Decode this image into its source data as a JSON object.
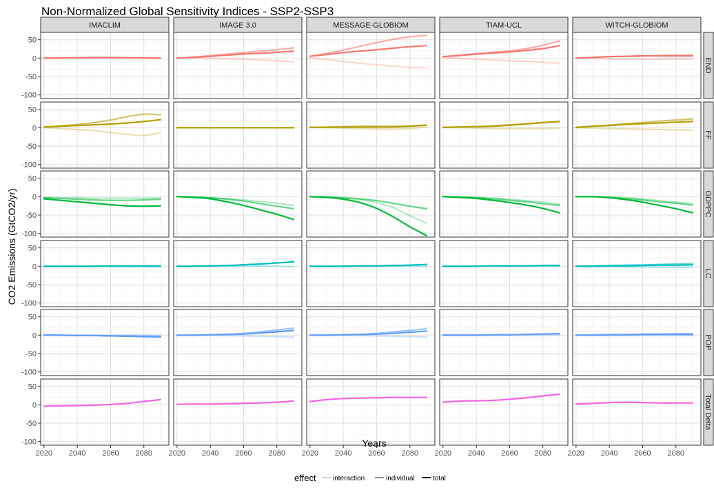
{
  "chart_data": {
    "type": "line",
    "title": "Non-Normalized Global Sensitivity Indices - SSP2-SSP3",
    "xlabel": "Years",
    "ylabel": "CO2 Emissions (GtCO2/yr)",
    "x": [
      2020,
      2030,
      2040,
      2050,
      2060,
      2070,
      2080,
      2090
    ],
    "xlim": [
      2018,
      2095
    ],
    "ylim": [
      -110,
      70
    ],
    "x_ticks": [
      2020,
      2040,
      2060,
      2080
    ],
    "y_ticks": [
      50,
      0,
      -50,
      -100
    ],
    "grid": true,
    "facet_cols": [
      "IMACLIM",
      "IMAGE 3.0",
      "MESSAGE-GLOBIOM",
      "TIAM-UCL",
      "WITCH-GLOBIOM"
    ],
    "facet_rows": [
      {
        "label": "END",
        "color": "#F8766D"
      },
      {
        "label": "FF",
        "color": "#B79F00"
      },
      {
        "label": "GDPPC",
        "color": "#00BA38"
      },
      {
        "label": "LC",
        "color": "#00BFC4"
      },
      {
        "label": "POP",
        "color": "#619CFF"
      },
      {
        "label": "Total Delta",
        "color": "#F564E3"
      }
    ],
    "panels": {
      "END": {
        "IMACLIM": {
          "interaction": [
            0,
            0,
            0,
            0,
            0,
            0,
            0,
            0
          ],
          "individual": [
            0,
            0.5,
            1,
            1.5,
            1.5,
            1,
            0.5,
            0
          ],
          "total": [
            0,
            0.5,
            1,
            1.5,
            1.5,
            1,
            0.5,
            0
          ]
        },
        "IMAGE 3.0": {
          "interaction": [
            0,
            0,
            -1,
            -2,
            -3,
            -5,
            -7,
            -10
          ],
          "individual": [
            0,
            3,
            7,
            11,
            15,
            19,
            23,
            28
          ],
          "total": [
            0,
            2,
            5,
            8,
            11,
            13,
            16,
            19
          ]
        },
        "MESSAGE-GLOBIOM": {
          "interaction": [
            0,
            -4,
            -9,
            -14,
            -18,
            -22,
            -25,
            -26
          ],
          "individual": [
            5,
            13,
            22,
            32,
            42,
            51,
            58,
            62
          ],
          "total": [
            5,
            10,
            15,
            19,
            23,
            27,
            31,
            34
          ]
        },
        "TIAM-UCL": {
          "interaction": [
            0,
            -1,
            -3,
            -5,
            -7,
            -9,
            -11,
            -14
          ],
          "individual": [
            4,
            8,
            12,
            16,
            20,
            26,
            35,
            47
          ],
          "total": [
            4,
            7,
            11,
            14,
            17,
            21,
            26,
            34
          ]
        },
        "WITCH-GLOBIOM": {
          "interaction": [
            0,
            -1,
            -2,
            -3,
            -3,
            -3,
            -2,
            -2
          ],
          "individual": [
            0,
            2,
            4,
            5,
            6,
            7,
            8,
            8
          ],
          "total": [
            0,
            2,
            4,
            5,
            6,
            6,
            6,
            6
          ]
        }
      },
      "FF": {
        "IMACLIM": {
          "interaction": [
            0,
            -2,
            -5,
            -8,
            -13,
            -18,
            -21,
            -13
          ],
          "individual": [
            2,
            5,
            9,
            14,
            21,
            30,
            37,
            35
          ],
          "total": [
            2,
            4,
            6,
            8,
            10,
            13,
            17,
            22
          ]
        },
        "IMAGE 3.0": {
          "interaction": [
            0,
            0,
            0,
            0,
            0,
            0,
            0,
            0
          ],
          "individual": [
            0,
            0,
            0,
            0,
            0,
            0,
            0,
            0
          ],
          "total": [
            0,
            0,
            0,
            0,
            0,
            0,
            0,
            0
          ]
        },
        "MESSAGE-GLOBIOM": {
          "interaction": [
            0,
            0,
            -1,
            -2,
            -3,
            -4,
            -2,
            2
          ],
          "individual": [
            1,
            2,
            3,
            4,
            4,
            4,
            5,
            7
          ],
          "total": [
            1,
            1,
            2,
            2,
            2,
            2,
            4,
            7
          ]
        },
        "TIAM-UCL": {
          "interaction": [
            0,
            0,
            -1,
            -2,
            -2,
            -2,
            -2,
            -1
          ],
          "individual": [
            1,
            2,
            3,
            5,
            8,
            11,
            14,
            17
          ],
          "total": [
            1,
            2,
            3,
            4,
            7,
            10,
            14,
            17
          ]
        },
        "WITCH-GLOBIOM": {
          "interaction": [
            0,
            -1,
            -2,
            -3,
            -4,
            -5,
            -6,
            -7
          ],
          "individual": [
            1,
            4,
            7,
            11,
            14,
            18,
            21,
            24
          ],
          "total": [
            1,
            4,
            6,
            9,
            11,
            13,
            15,
            17
          ]
        }
      },
      "GDPPC": {
        "IMACLIM": {
          "interaction": [
            -3,
            -3,
            -3,
            -4,
            -4,
            -4,
            -4,
            -4
          ],
          "individual": [
            -3,
            -5,
            -7,
            -9,
            -10,
            -10,
            -9,
            -7
          ],
          "total": [
            -6,
            -10,
            -14,
            -18,
            -22,
            -25,
            -26,
            -25
          ]
        },
        "IMAGE 3.0": {
          "interaction": [
            0,
            -1,
            -3,
            -6,
            -9,
            -13,
            -18,
            -24
          ],
          "individual": [
            0,
            -1,
            -3,
            -7,
            -12,
            -19,
            -26,
            -33
          ],
          "total": [
            0,
            -2,
            -6,
            -14,
            -24,
            -36,
            -48,
            -62
          ]
        },
        "MESSAGE-GLOBIOM": {
          "interaction": [
            0,
            -1,
            -4,
            -8,
            -16,
            -30,
            -52,
            -72
          ],
          "individual": [
            0,
            -1,
            -3,
            -6,
            -11,
            -18,
            -26,
            -33
          ],
          "total": [
            0,
            -2,
            -7,
            -16,
            -32,
            -55,
            -82,
            -106
          ]
        },
        "TIAM-UCL": {
          "interaction": [
            0,
            -1,
            -2,
            -4,
            -7,
            -11,
            -15,
            -20
          ],
          "individual": [
            0,
            -1,
            -3,
            -6,
            -10,
            -14,
            -19,
            -24
          ],
          "total": [
            0,
            -2,
            -5,
            -10,
            -16,
            -23,
            -32,
            -44
          ]
        },
        "WITCH-GLOBIOM": {
          "interaction": [
            0,
            0,
            -1,
            -3,
            -6,
            -11,
            -15,
            -19
          ],
          "individual": [
            0,
            0,
            -2,
            -5,
            -9,
            -14,
            -18,
            -23
          ],
          "total": [
            0,
            0,
            -3,
            -8,
            -15,
            -24,
            -33,
            -44
          ]
        }
      },
      "LC": {
        "IMACLIM": {
          "interaction": [
            0,
            0,
            0,
            0,
            0,
            0,
            0,
            0
          ],
          "individual": [
            0,
            0,
            0,
            0,
            0,
            0,
            0,
            0
          ],
          "total": [
            0,
            0,
            0,
            0,
            0.5,
            0.5,
            0.5,
            0.5
          ]
        },
        "IMAGE 3.0": {
          "interaction": [
            0,
            0,
            0,
            0,
            0,
            0,
            0,
            -1
          ],
          "individual": [
            0,
            0,
            1,
            2,
            4,
            6,
            9,
            12
          ],
          "total": [
            0,
            0,
            1,
            2,
            4,
            6,
            9,
            12
          ]
        },
        "MESSAGE-GLOBIOM": {
          "interaction": [
            0,
            0,
            0,
            0,
            0,
            0,
            0,
            0
          ],
          "individual": [
            0,
            0,
            0,
            1,
            1,
            2,
            3,
            5
          ],
          "total": [
            0,
            0,
            0,
            1,
            1,
            2,
            3,
            5
          ]
        },
        "TIAM-UCL": {
          "interaction": [
            0,
            0,
            0,
            0,
            0,
            0,
            0,
            0
          ],
          "individual": [
            0,
            0,
            0,
            1,
            1,
            1,
            2,
            2
          ],
          "total": [
            0,
            0,
            0,
            1,
            1,
            1,
            2,
            2
          ]
        },
        "WITCH-GLOBIOM": {
          "interaction": [
            0,
            -1,
            -1,
            -2,
            -2,
            -3,
            -3,
            -3
          ],
          "individual": [
            0,
            1,
            2,
            3,
            4,
            5,
            6,
            7
          ],
          "total": [
            0,
            0,
            1,
            1,
            2,
            3,
            3,
            4
          ]
        }
      },
      "POP": {
        "IMACLIM": {
          "interaction": [
            0,
            0,
            0,
            0,
            0,
            0,
            0,
            0
          ],
          "individual": [
            0,
            0,
            -1,
            -1,
            -2,
            -2,
            -3,
            -3
          ],
          "total": [
            0,
            0,
            -1,
            -1,
            -2,
            -3,
            -4,
            -5
          ]
        },
        "IMAGE 3.0": {
          "interaction": [
            0,
            0,
            0,
            -1,
            -2,
            -3,
            -4,
            -5
          ],
          "individual": [
            0,
            0,
            1,
            2,
            5,
            9,
            14,
            19
          ],
          "total": [
            0,
            0,
            1,
            2,
            3,
            6,
            9,
            13
          ]
        },
        "MESSAGE-GLOBIOM": {
          "interaction": [
            0,
            0,
            0,
            -1,
            -2,
            -3,
            -4,
            -5
          ],
          "individual": [
            0,
            0,
            1,
            2,
            5,
            9,
            13,
            18
          ],
          "total": [
            0,
            0,
            1,
            2,
            3,
            5,
            8,
            11
          ]
        },
        "TIAM-UCL": {
          "interaction": [
            0,
            0,
            0,
            0,
            0,
            0,
            0,
            0
          ],
          "individual": [
            0,
            0,
            0,
            1,
            1,
            2,
            3,
            4
          ],
          "total": [
            0,
            0,
            0,
            1,
            1,
            2,
            3,
            4
          ]
        },
        "WITCH-GLOBIOM": {
          "interaction": [
            0,
            0,
            -1,
            -1,
            -1,
            -1,
            -1,
            -1
          ],
          "individual": [
            0,
            1,
            2,
            2,
            3,
            3,
            4,
            4
          ],
          "total": [
            0,
            0,
            1,
            1,
            2,
            2,
            2,
            2
          ]
        }
      },
      "Total Delta": {
        "IMACLIM": {
          "total": [
            -4,
            -3,
            -2,
            -1,
            1,
            4,
            9,
            14
          ]
        },
        "IMAGE 3.0": {
          "total": [
            1,
            2,
            2,
            3,
            4,
            5,
            7,
            10
          ]
        },
        "MESSAGE-GLOBIOM": {
          "total": [
            9,
            14,
            17,
            18,
            19,
            20,
            20,
            20
          ]
        },
        "TIAM-UCL": {
          "total": [
            7,
            10,
            11,
            12,
            15,
            19,
            24,
            29
          ]
        },
        "WITCH-GLOBIOM": {
          "total": [
            2,
            4,
            6,
            7,
            6,
            5,
            5,
            5
          ]
        }
      }
    },
    "legend": {
      "title": "effect",
      "position": "bottom",
      "entries": [
        {
          "label": "interaction",
          "color": "#d3d3d3"
        },
        {
          "label": "individual",
          "color": "#8c8c8c"
        },
        {
          "label": "total",
          "color": "#000000"
        }
      ]
    }
  }
}
